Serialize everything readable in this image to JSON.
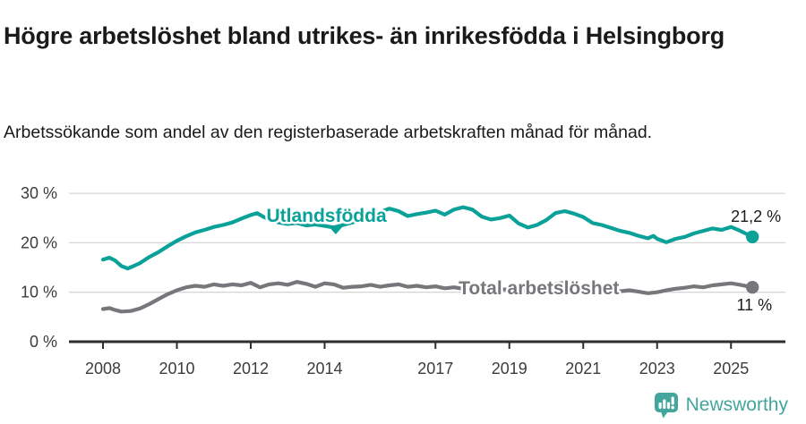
{
  "header": {
    "title": "Högre arbetslöshet bland utrikes- än inrikesfödda i Helsingborg",
    "subtitle": "Arbetssökande som andel av den registerbaserade arbetskraften månad för månad."
  },
  "footer": {
    "brand": "Newsworthy",
    "brand_color": "#43a59e"
  },
  "chart_data": {
    "type": "line",
    "title": "Högre arbetslöshet bland utrikes- än inrikesfödda i Helsingborg",
    "subtitle": "Arbetssökande som andel av den registerbaserade arbetskraften månad för månad.",
    "xlabel": "",
    "ylabel": "",
    "grid": "horizontal",
    "legend_position": "inline-labels",
    "xlim": [
      2007.1,
      2026.5
    ],
    "ylim": [
      0,
      33
    ],
    "yticks": [
      {
        "value": 0,
        "label": "0 %"
      },
      {
        "value": 10,
        "label": "10 %"
      },
      {
        "value": 20,
        "label": "20 %"
      },
      {
        "value": 30,
        "label": "30 %"
      }
    ],
    "xticks": [
      {
        "value": 2008,
        "label": "2008"
      },
      {
        "value": 2010,
        "label": "2010"
      },
      {
        "value": 2012,
        "label": "2012"
      },
      {
        "value": 2014,
        "label": "2014"
      },
      {
        "value": 2017,
        "label": "2017"
      },
      {
        "value": 2019,
        "label": "2019"
      },
      {
        "value": 2021,
        "label": "2021"
      },
      {
        "value": 2023,
        "label": "2023"
      },
      {
        "value": 2025,
        "label": "2025"
      }
    ],
    "series": [
      {
        "name": "Utlandsfödda",
        "color": "#0aa199",
        "end_label": "21,2 %",
        "end_label_side": "above",
        "inline_label": {
          "x": 2014.05,
          "y": 24.2,
          "caret": {
            "x": 2014.3,
            "y": 21.7
          }
        },
        "points": [
          [
            2008.0,
            16.6
          ],
          [
            2008.17,
            17.0
          ],
          [
            2008.33,
            16.4
          ],
          [
            2008.5,
            15.3
          ],
          [
            2008.67,
            14.8
          ],
          [
            2008.83,
            15.3
          ],
          [
            2009.0,
            15.9
          ],
          [
            2009.25,
            17.1
          ],
          [
            2009.5,
            18.1
          ],
          [
            2009.75,
            19.3
          ],
          [
            2010.0,
            20.4
          ],
          [
            2010.25,
            21.3
          ],
          [
            2010.5,
            22.1
          ],
          [
            2010.75,
            22.6
          ],
          [
            2011.0,
            23.2
          ],
          [
            2011.25,
            23.6
          ],
          [
            2011.5,
            24.1
          ],
          [
            2011.75,
            24.9
          ],
          [
            2012.0,
            25.6
          ],
          [
            2012.17,
            26.0
          ],
          [
            2012.33,
            25.3
          ],
          [
            2012.5,
            24.7
          ],
          [
            2012.75,
            24.1
          ],
          [
            2013.0,
            23.8
          ],
          [
            2013.25,
            24.0
          ],
          [
            2013.5,
            23.5
          ],
          [
            2013.75,
            23.7
          ],
          [
            2014.0,
            23.4
          ],
          [
            2014.25,
            23.1
          ],
          [
            2014.5,
            23.6
          ],
          [
            2014.75,
            24.1
          ],
          [
            2015.0,
            24.7
          ],
          [
            2015.25,
            25.5
          ],
          [
            2015.5,
            26.2
          ],
          [
            2015.75,
            26.9
          ],
          [
            2016.0,
            26.4
          ],
          [
            2016.25,
            25.4
          ],
          [
            2016.5,
            25.8
          ],
          [
            2016.75,
            26.1
          ],
          [
            2017.0,
            26.5
          ],
          [
            2017.25,
            25.7
          ],
          [
            2017.5,
            26.7
          ],
          [
            2017.75,
            27.2
          ],
          [
            2018.0,
            26.7
          ],
          [
            2018.25,
            25.3
          ],
          [
            2018.5,
            24.7
          ],
          [
            2018.75,
            25.0
          ],
          [
            2019.0,
            25.5
          ],
          [
            2019.25,
            23.9
          ],
          [
            2019.5,
            23.1
          ],
          [
            2019.75,
            23.6
          ],
          [
            2020.0,
            24.6
          ],
          [
            2020.25,
            26.0
          ],
          [
            2020.5,
            26.4
          ],
          [
            2020.75,
            25.9
          ],
          [
            2021.0,
            25.2
          ],
          [
            2021.25,
            24.0
          ],
          [
            2021.5,
            23.6
          ],
          [
            2021.75,
            23.0
          ],
          [
            2022.0,
            22.4
          ],
          [
            2022.25,
            22.0
          ],
          [
            2022.5,
            21.4
          ],
          [
            2022.75,
            20.9
          ],
          [
            2022.9,
            21.4
          ],
          [
            2023.0,
            20.8
          ],
          [
            2023.25,
            20.1
          ],
          [
            2023.5,
            20.8
          ],
          [
            2023.75,
            21.2
          ],
          [
            2024.0,
            21.9
          ],
          [
            2024.25,
            22.4
          ],
          [
            2024.5,
            22.9
          ],
          [
            2024.75,
            22.6
          ],
          [
            2025.0,
            23.2
          ],
          [
            2025.25,
            22.4
          ],
          [
            2025.58,
            21.2
          ]
        ]
      },
      {
        "name": "Total arbetslöshet",
        "color": "#76777b",
        "end_label": "11 %",
        "end_label_side": "below",
        "inline_label": {
          "x": 2019.8,
          "y": 9.6
        },
        "points": [
          [
            2008.0,
            6.6
          ],
          [
            2008.17,
            6.8
          ],
          [
            2008.33,
            6.4
          ],
          [
            2008.5,
            6.1
          ],
          [
            2008.75,
            6.2
          ],
          [
            2009.0,
            6.7
          ],
          [
            2009.25,
            7.6
          ],
          [
            2009.5,
            8.6
          ],
          [
            2009.75,
            9.6
          ],
          [
            2010.0,
            10.4
          ],
          [
            2010.25,
            11.0
          ],
          [
            2010.5,
            11.3
          ],
          [
            2010.75,
            11.1
          ],
          [
            2011.0,
            11.6
          ],
          [
            2011.25,
            11.3
          ],
          [
            2011.5,
            11.6
          ],
          [
            2011.75,
            11.4
          ],
          [
            2012.0,
            11.9
          ],
          [
            2012.25,
            11.0
          ],
          [
            2012.5,
            11.6
          ],
          [
            2012.75,
            11.8
          ],
          [
            2013.0,
            11.5
          ],
          [
            2013.25,
            12.1
          ],
          [
            2013.5,
            11.7
          ],
          [
            2013.75,
            11.1
          ],
          [
            2014.0,
            11.8
          ],
          [
            2014.25,
            11.6
          ],
          [
            2014.5,
            10.9
          ],
          [
            2014.75,
            11.1
          ],
          [
            2015.0,
            11.2
          ],
          [
            2015.25,
            11.5
          ],
          [
            2015.5,
            11.1
          ],
          [
            2015.75,
            11.4
          ],
          [
            2016.0,
            11.6
          ],
          [
            2016.25,
            11.1
          ],
          [
            2016.5,
            11.3
          ],
          [
            2016.75,
            11.0
          ],
          [
            2017.0,
            11.2
          ],
          [
            2017.25,
            10.8
          ],
          [
            2017.5,
            11.0
          ],
          [
            2017.75,
            10.7
          ],
          [
            2018.0,
            10.9
          ],
          [
            2018.25,
            10.6
          ],
          [
            2018.5,
            10.4
          ],
          [
            2018.75,
            10.6
          ],
          [
            2019.0,
            10.5
          ],
          [
            2019.25,
            10.3
          ],
          [
            2019.5,
            10.4
          ],
          [
            2019.75,
            10.7
          ],
          [
            2020.0,
            11.0
          ],
          [
            2020.25,
            11.7
          ],
          [
            2020.5,
            11.9
          ],
          [
            2020.75,
            11.5
          ],
          [
            2021.0,
            11.2
          ],
          [
            2021.25,
            11.0
          ],
          [
            2021.5,
            10.7
          ],
          [
            2021.75,
            10.4
          ],
          [
            2022.0,
            10.2
          ],
          [
            2022.25,
            10.4
          ],
          [
            2022.5,
            10.1
          ],
          [
            2022.75,
            9.8
          ],
          [
            2023.0,
            10.0
          ],
          [
            2023.25,
            10.4
          ],
          [
            2023.5,
            10.7
          ],
          [
            2023.75,
            10.9
          ],
          [
            2024.0,
            11.2
          ],
          [
            2024.25,
            11.0
          ],
          [
            2024.5,
            11.4
          ],
          [
            2024.75,
            11.6
          ],
          [
            2025.0,
            11.8
          ],
          [
            2025.25,
            11.5
          ],
          [
            2025.58,
            11.0
          ]
        ]
      }
    ]
  }
}
